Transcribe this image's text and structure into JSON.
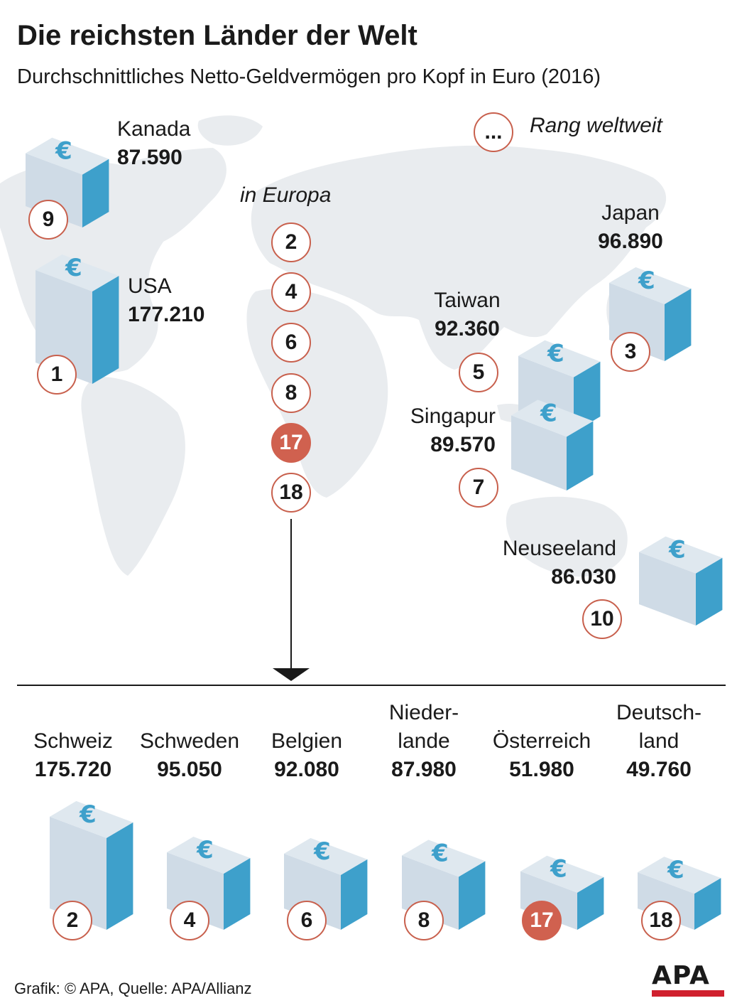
{
  "title": "Die reichsten Länder der Welt",
  "subtitle": "Durchschnittliches Netto-Geldvermögen pro Kopf in Euro (2016)",
  "legend": {
    "symbol": "...",
    "label": "Rang weltweit"
  },
  "europe_label": "in Europa",
  "colors": {
    "accent": "#d0614f",
    "box_front": "#cfdbe6",
    "box_side": "#3ea0cb",
    "map": "#e9ecef"
  },
  "chart_data": [
    {
      "type": "bar",
      "title": "Die reichsten Länder der Welt",
      "subtitle": "Durchschnittliches Netto-Geldvermögen pro Kopf in Euro (2016)",
      "series": [
        {
          "name": "",
          "values": [
            {
              "country": "USA",
              "value": "177.210",
              "num": 177210,
              "rank": 1
            },
            {
              "country": "Japan",
              "value": "96.890",
              "num": 96890,
              "rank": 3
            },
            {
              "country": "Taiwan",
              "value": "92.360",
              "num": 92360,
              "rank": 5
            },
            {
              "country": "Singapur",
              "value": "89.570",
              "num": 89570,
              "rank": 7
            },
            {
              "country": "Kanada",
              "value": "87.590",
              "num": 87590,
              "rank": 9
            },
            {
              "country": "Neuseeland",
              "value": "86.030",
              "num": 86030,
              "rank": 10
            }
          ]
        }
      ]
    },
    {
      "type": "bar",
      "title": "in Europa",
      "categories": [
        "Schweiz",
        "Schweden",
        "Belgien",
        "Nieder-\nlande",
        "Österreich",
        "Deutsch-\nland"
      ],
      "values": [
        175720,
        95050,
        92080,
        87980,
        51980,
        49760
      ],
      "value_labels": [
        "175.720",
        "95.050",
        "92.080",
        "87.980",
        "51.980",
        "49.760"
      ],
      "ranks": [
        "2",
        "4",
        "6",
        "8",
        "17",
        "18"
      ],
      "highlight": "Österreich"
    }
  ],
  "europe_ranks": [
    "2",
    "4",
    "6",
    "8",
    "17",
    "18"
  ],
  "footer": "Grafik: © APA, Quelle: APA/Allianz",
  "logo": "APA"
}
